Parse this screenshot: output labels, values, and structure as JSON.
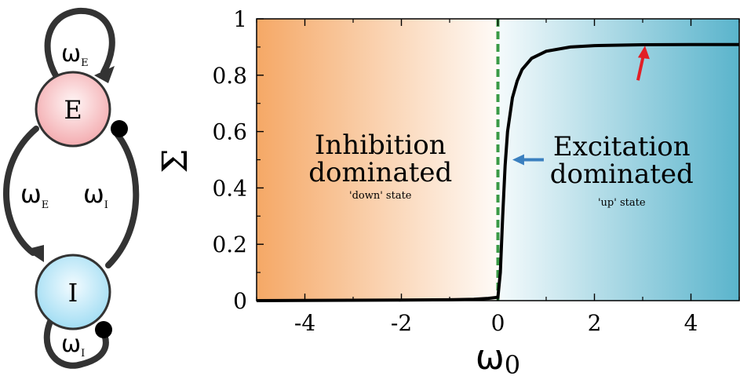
{
  "network": {
    "node_e": {
      "label": "E",
      "color": "#f3a9ad"
    },
    "node_i": {
      "label": "I",
      "color": "#9fdcf3"
    },
    "self_e_label": {
      "sym": "ω",
      "sub": "E"
    },
    "e_to_i_label": {
      "sym": "ω",
      "sub": "E"
    },
    "i_to_e_label": {
      "sym": "ω",
      "sub": "I"
    },
    "self_i_label": {
      "sym": "ω",
      "sub": "I"
    }
  },
  "chart_data": {
    "type": "line",
    "xlabel": "ω",
    "xlabel_sub": "0",
    "ylabel": "Σ",
    "xlim": [
      -5,
      5
    ],
    "ylim": [
      0,
      1
    ],
    "x_ticks": [
      -4,
      -2,
      0,
      2,
      4
    ],
    "x_tick_labels": [
      "-4",
      "-2",
      "0",
      "2",
      "4"
    ],
    "y_ticks": [
      0,
      0.2,
      0.4,
      0.6,
      0.8,
      1
    ],
    "y_tick_labels": [
      "0",
      "0.2",
      "0.4",
      "0.6",
      "0.8",
      "1"
    ],
    "threshold_x": 0,
    "series": [
      {
        "color": "#000000",
        "x": [
          -5,
          -2,
          -1,
          -0.5,
          -0.2,
          0,
          0.05,
          0.1,
          0.15,
          0.2,
          0.3,
          0.4,
          0.5,
          0.7,
          1,
          1.5,
          2,
          3,
          4,
          5
        ],
        "y": [
          0,
          0.002,
          0.003,
          0.005,
          0.008,
          0.012,
          0.1,
          0.3,
          0.48,
          0.6,
          0.72,
          0.78,
          0.82,
          0.86,
          0.885,
          0.9,
          0.905,
          0.908,
          0.909,
          0.909
        ]
      }
    ],
    "regions": {
      "inhibition": {
        "title_line1": "Inhibition",
        "title_line2": "dominated",
        "subtitle": "'down' state",
        "color": "#f5a866"
      },
      "excitation": {
        "title_line1": "Excitation",
        "title_line2": "dominated",
        "subtitle": "'up' state",
        "color": "#5ab4cc"
      }
    },
    "annotations": [
      {
        "name": "blue-arrow",
        "color": "#3a7fbf",
        "x": 0.3,
        "y": 0.5
      },
      {
        "name": "red-arrow",
        "color": "#e21f26",
        "x": 2.95,
        "y": 0.91
      }
    ],
    "threshold_color": "#3a9a46"
  }
}
